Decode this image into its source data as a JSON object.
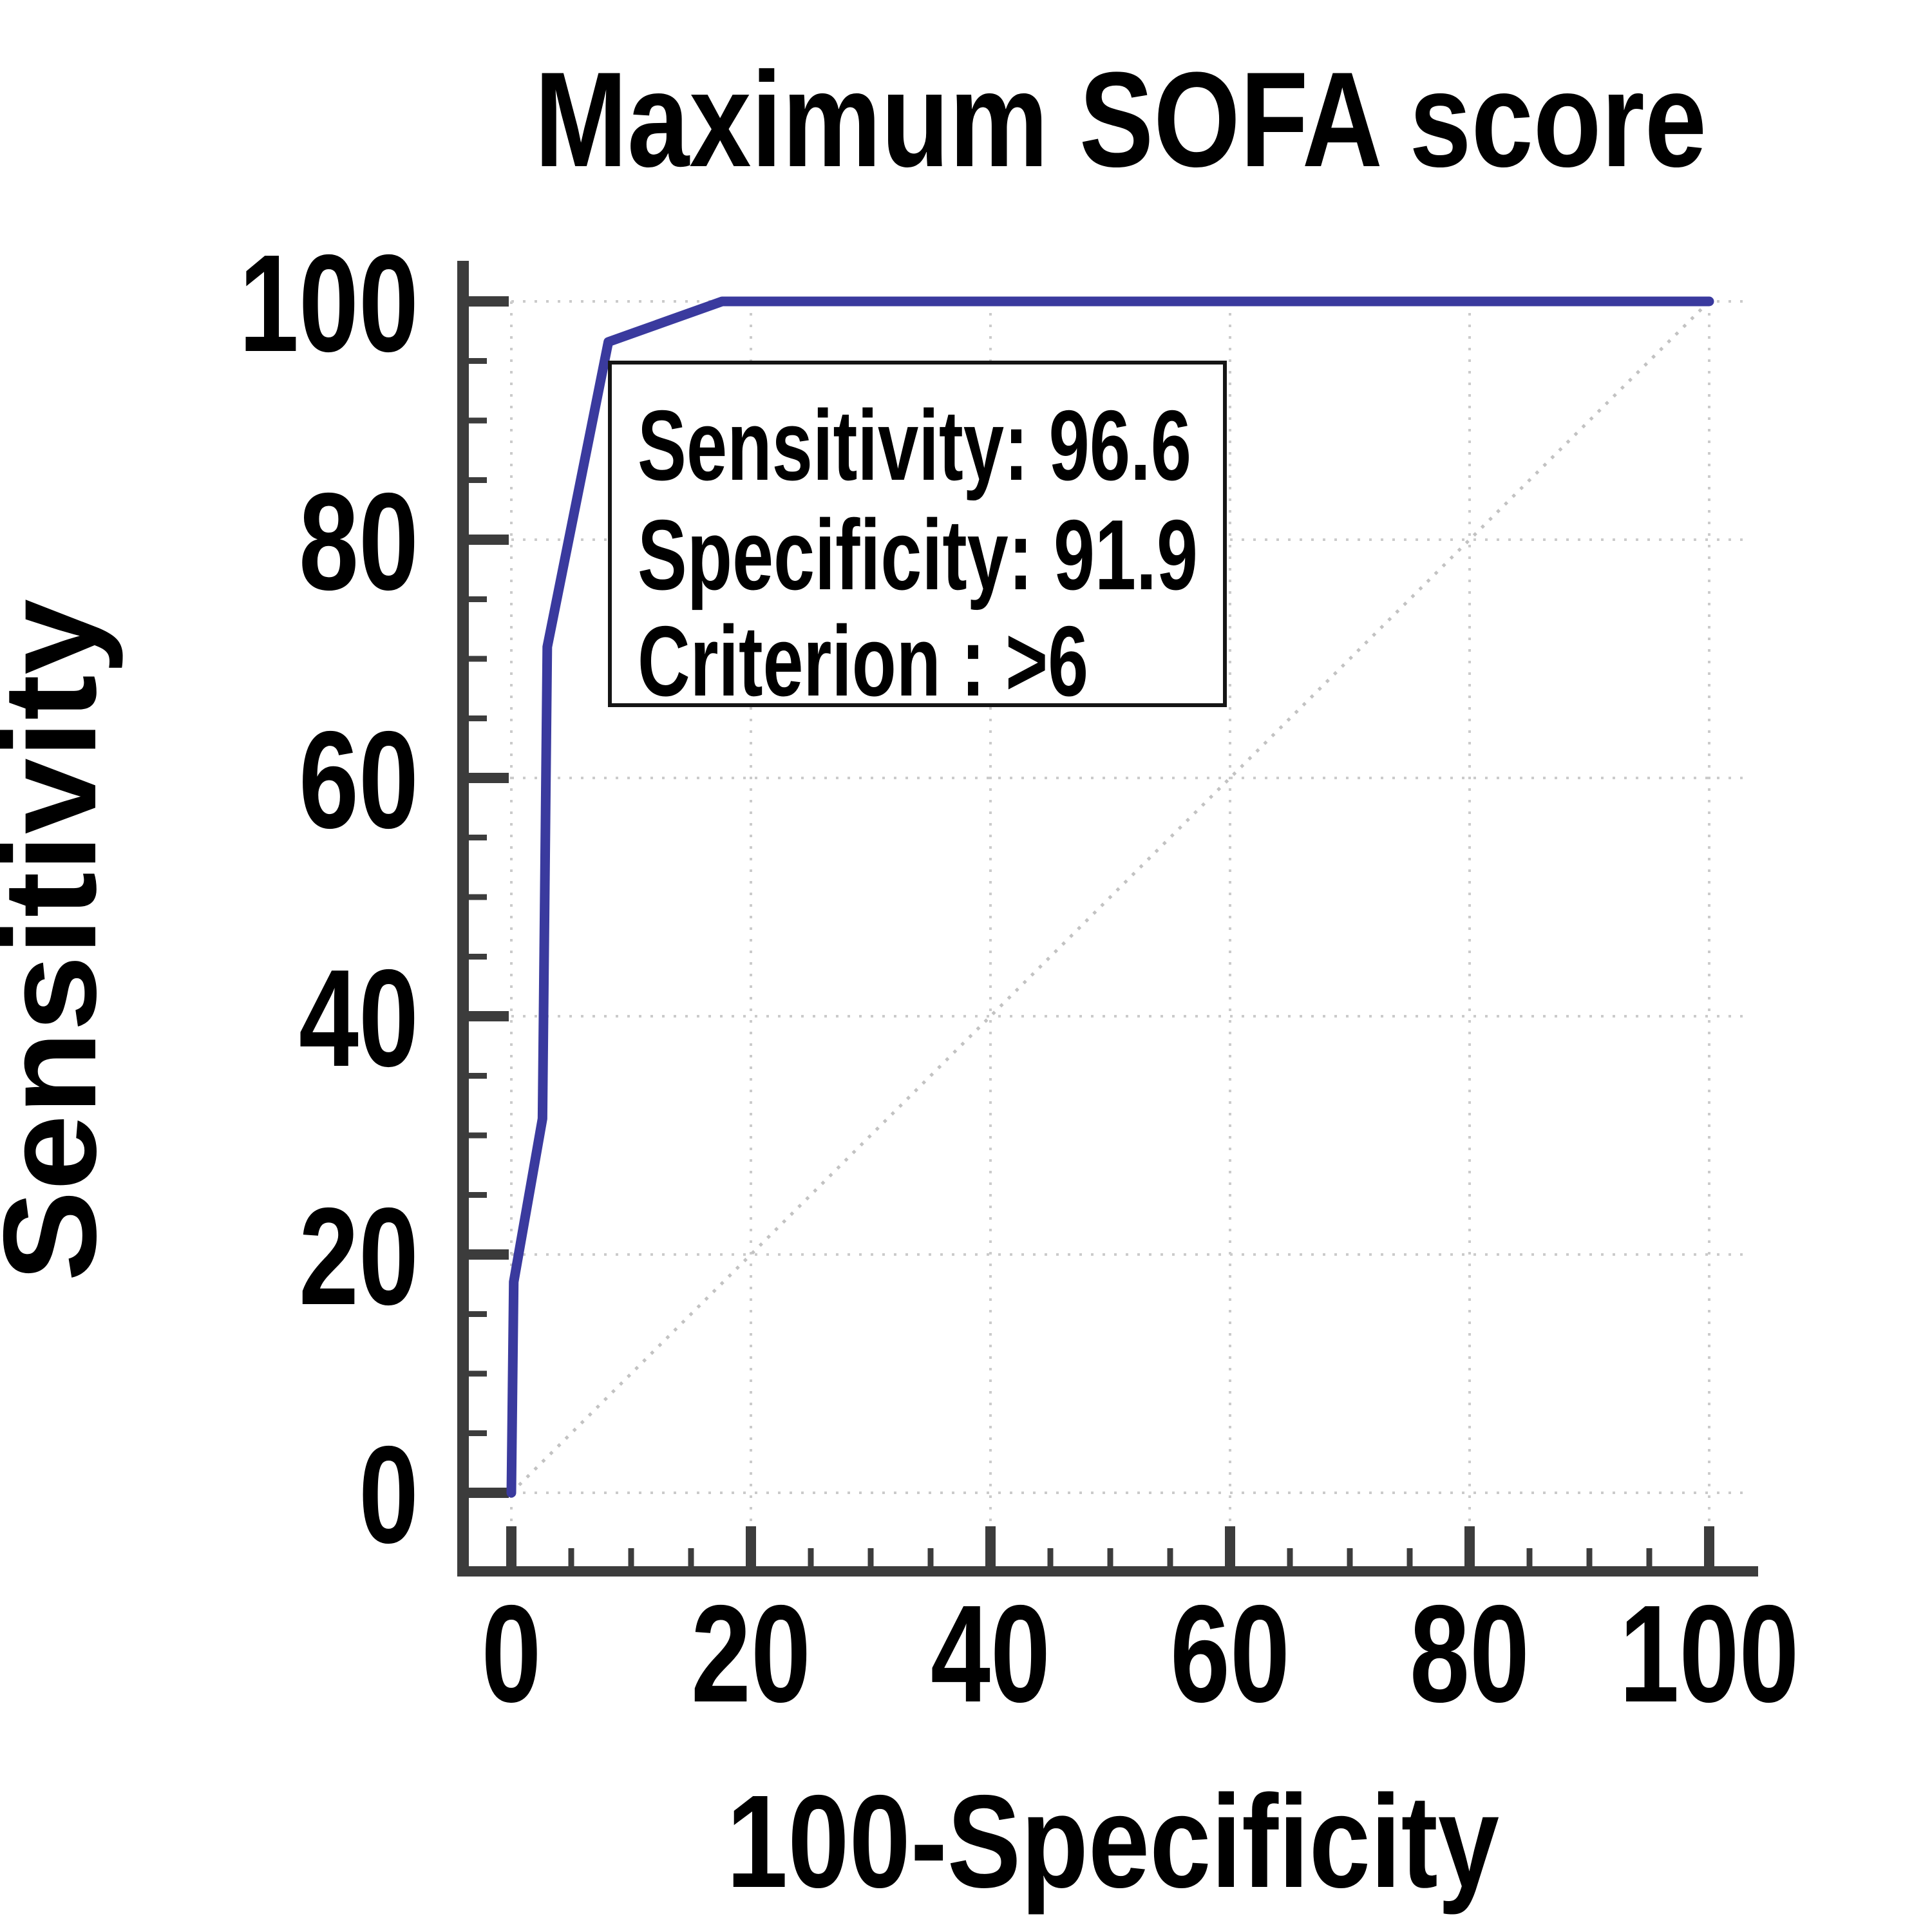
{
  "title": "Maximum SOFA score",
  "annotation": {
    "lines": [
      "Sensitivity: 96.6",
      "Specificity: 91.9",
      "Criterion : >6"
    ]
  },
  "colors": {
    "curve": "#3a3a9e",
    "axis": "#3c3c3c",
    "grid": "#cbcbcb",
    "diagonal": "#c2c2c2",
    "text": "#000000",
    "annotation_border": "#151515",
    "background": "#ffffff"
  },
  "chart_data": {
    "type": "line",
    "title": "Maximum SOFA score",
    "xlabel": "100-Specificity",
    "ylabel": "Sensitivity",
    "xlim": [
      0,
      100
    ],
    "ylim": [
      0,
      100
    ],
    "x_ticks": [
      0,
      20,
      40,
      60,
      80,
      100
    ],
    "y_ticks": [
      0,
      20,
      40,
      60,
      80,
      100
    ],
    "x_tick_labels": [
      "0",
      "20",
      "40",
      "60",
      "80",
      "100"
    ],
    "y_tick_labels": [
      "0",
      "20",
      "40",
      "60",
      "80",
      "100"
    ],
    "minor_tick_step": 5,
    "grid": true,
    "grid_style": "dotted",
    "legend_position": "none",
    "series": [
      {
        "name": "ROC curve - Maximum SOFA score",
        "type": "line",
        "color": "#3a3a9e",
        "points": [
          [
            0,
            0
          ],
          [
            0.2,
            17.7
          ],
          [
            2.6,
            31.4
          ],
          [
            3.0,
            71.0
          ],
          [
            8.1,
            96.6
          ],
          [
            17.6,
            100
          ],
          [
            100,
            100
          ]
        ]
      },
      {
        "name": "Reference diagonal",
        "type": "line",
        "style": "dotted",
        "color": "#c2c2c2",
        "points": [
          [
            0,
            0
          ],
          [
            100,
            100
          ]
        ]
      }
    ],
    "operating_point": {
      "x": 8.1,
      "y": 96.6,
      "sensitivity": 96.6,
      "specificity": 91.9,
      "criterion": ">6"
    }
  }
}
